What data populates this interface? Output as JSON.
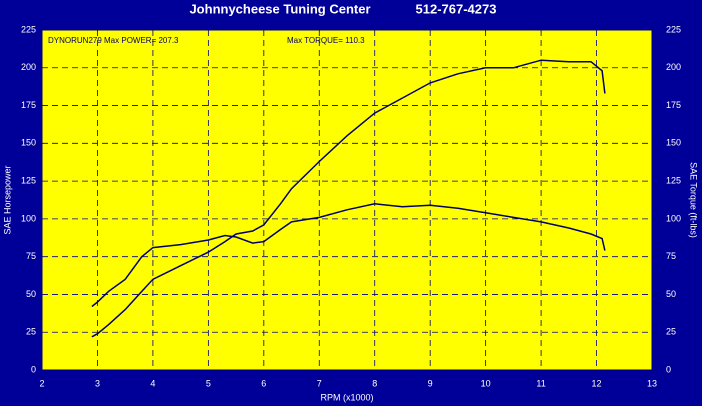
{
  "chart_data": {
    "type": "line",
    "title": "Johnnycheese Tuning Center",
    "subtitle": "512-767-4273",
    "annotations": [
      "DYNORUN279  Max POWER= 207.3",
      "Max TORQUE= 110.3"
    ],
    "xlabel": "RPM (x1000)",
    "ylabel": "SAE Horsepower",
    "y2label": "SAE Torque (ft-lbs)",
    "x": [
      2.9,
      3.0,
      3.2,
      3.5,
      3.8,
      4.0,
      4.5,
      5.0,
      5.3,
      5.5,
      5.8,
      6.0,
      6.3,
      6.5,
      7.0,
      7.5,
      8.0,
      8.5,
      9.0,
      9.5,
      10.0,
      10.5,
      11.0,
      11.5,
      11.9,
      12.1,
      12.15
    ],
    "series": [
      {
        "color": "#000066",
        "values": [
          22,
          24,
          30,
          40,
          52,
          60,
          69,
          78,
          85,
          90,
          92,
          96,
          110,
          120,
          138,
          155,
          170,
          180,
          190,
          196,
          200,
          200,
          205,
          204,
          204,
          198,
          183
        ]
      },
      {
        "color": "#000066",
        "axis": "y2",
        "values": [
          42,
          45,
          52,
          60,
          75,
          81,
          83,
          86,
          89,
          88,
          84,
          85,
          93,
          98,
          101,
          106,
          110,
          108,
          109,
          107,
          104,
          101,
          98,
          94,
          90,
          87,
          79
        ]
      }
    ],
    "xlim": [
      2,
      13
    ],
    "xticks": [
      2,
      3,
      4,
      5,
      6,
      7,
      8,
      9,
      10,
      11,
      12,
      13
    ],
    "ylim": [
      0,
      225
    ],
    "yticks": [
      0,
      25,
      50,
      75,
      100,
      125,
      150,
      175,
      200,
      225
    ],
    "y2lim": [
      0,
      225
    ],
    "y2ticks": [
      0,
      25,
      50,
      75,
      100,
      125,
      150,
      175,
      200,
      225
    ],
    "grid": true,
    "plot_color": "#ffff00",
    "grid_color": "#000080"
  }
}
